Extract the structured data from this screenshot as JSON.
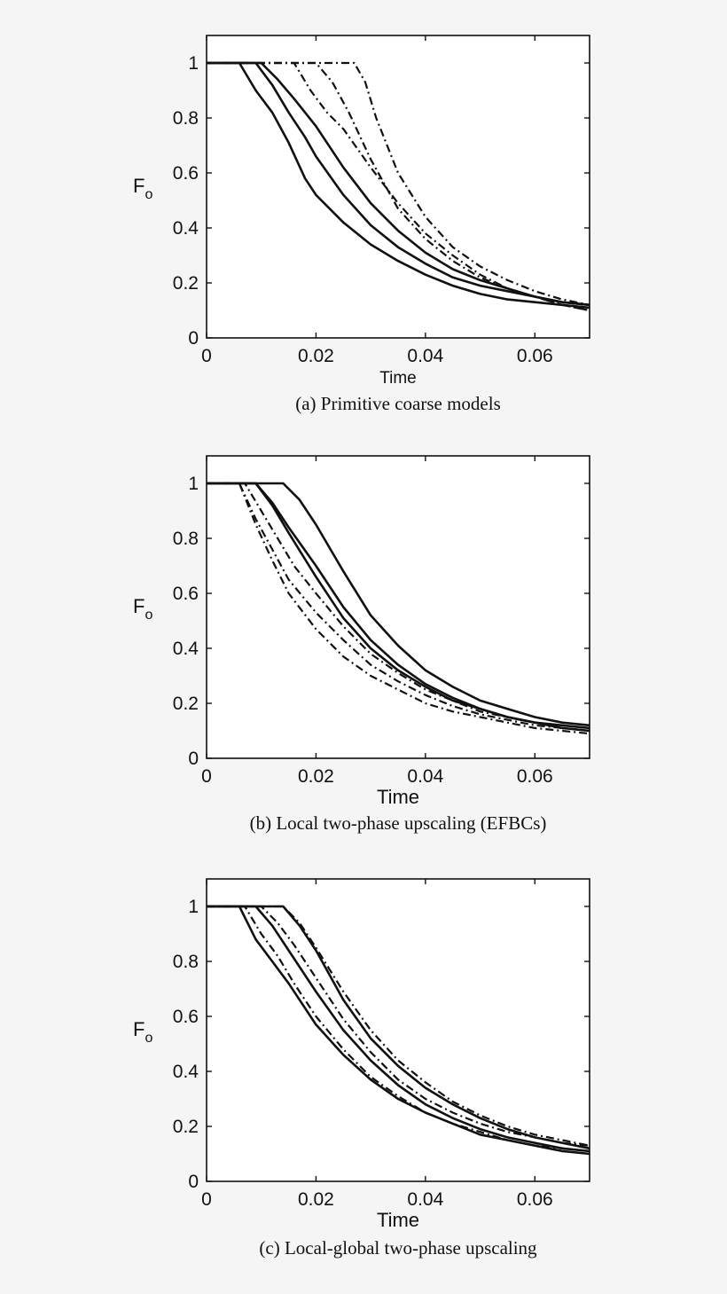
{
  "chart_data": [
    {
      "type": "line",
      "caption": "(a) Primitive coarse models",
      "xlabel": "Time",
      "ylabel": "F",
      "ylabel_sub": "o",
      "xlim": [
        0,
        0.07
      ],
      "ylim": [
        0,
        1.1
      ],
      "xticks": [
        "0",
        "0.02",
        "0.04",
        "0.06"
      ],
      "yticks": [
        "0",
        "0.2",
        "0.4",
        "0.6",
        "0.8",
        "1"
      ],
      "grid": false,
      "series": [
        {
          "style": "solid",
          "x": [
            0,
            0.006,
            0.009,
            0.012,
            0.015,
            0.018,
            0.02,
            0.025,
            0.03,
            0.035,
            0.04,
            0.045,
            0.05,
            0.055,
            0.06,
            0.065,
            0.07
          ],
          "y": [
            1,
            1,
            0.9,
            0.82,
            0.71,
            0.58,
            0.52,
            0.42,
            0.34,
            0.28,
            0.23,
            0.19,
            0.16,
            0.14,
            0.13,
            0.12,
            0.11
          ]
        },
        {
          "style": "solid",
          "x": [
            0,
            0.009,
            0.012,
            0.015,
            0.018,
            0.02,
            0.025,
            0.03,
            0.035,
            0.04,
            0.045,
            0.05,
            0.055,
            0.06,
            0.065,
            0.07
          ],
          "y": [
            1,
            1,
            0.92,
            0.82,
            0.73,
            0.66,
            0.52,
            0.41,
            0.33,
            0.27,
            0.22,
            0.19,
            0.17,
            0.15,
            0.13,
            0.12
          ]
        },
        {
          "style": "solid",
          "x": [
            0,
            0.01,
            0.013,
            0.016,
            0.02,
            0.025,
            0.03,
            0.035,
            0.04,
            0.045,
            0.05,
            0.055,
            0.06,
            0.065,
            0.07
          ],
          "y": [
            1,
            1,
            0.94,
            0.87,
            0.77,
            0.62,
            0.49,
            0.39,
            0.31,
            0.25,
            0.21,
            0.18,
            0.15,
            0.13,
            0.12
          ]
        },
        {
          "style": "dashdot",
          "x": [
            0,
            0.016,
            0.019,
            0.022,
            0.025,
            0.03,
            0.035,
            0.04,
            0.045,
            0.05,
            0.055,
            0.06,
            0.065,
            0.07
          ],
          "y": [
            1,
            1,
            0.9,
            0.82,
            0.76,
            0.62,
            0.49,
            0.38,
            0.3,
            0.23,
            0.18,
            0.15,
            0.12,
            0.1
          ]
        },
        {
          "style": "dashdot",
          "x": [
            0,
            0.02,
            0.023,
            0.026,
            0.03,
            0.035,
            0.04,
            0.045,
            0.05,
            0.055,
            0.06,
            0.065,
            0.07
          ],
          "y": [
            1,
            1,
            0.93,
            0.82,
            0.65,
            0.47,
            0.36,
            0.28,
            0.22,
            0.18,
            0.15,
            0.12,
            0.1
          ]
        },
        {
          "style": "dashdot",
          "x": [
            0,
            0.027,
            0.029,
            0.031,
            0.035,
            0.04,
            0.045,
            0.05,
            0.055,
            0.06,
            0.065,
            0.07
          ],
          "y": [
            1,
            1,
            0.93,
            0.8,
            0.6,
            0.44,
            0.33,
            0.26,
            0.21,
            0.17,
            0.14,
            0.12
          ]
        }
      ]
    },
    {
      "type": "line",
      "caption": "(b) Local two-phase upscaling (EFBCs)",
      "xlabel": "Time",
      "ylabel": "F",
      "ylabel_sub": "o",
      "xlim": [
        0,
        0.07
      ],
      "ylim": [
        0,
        1.1
      ],
      "xticks": [
        "0",
        "0.02",
        "0.04",
        "0.06"
      ],
      "yticks": [
        "0",
        "0.2",
        "0.4",
        "0.6",
        "0.8",
        "1"
      ],
      "grid": false,
      "series": [
        {
          "style": "solid",
          "x": [
            0,
            0.014,
            0.017,
            0.02,
            0.025,
            0.03,
            0.035,
            0.04,
            0.045,
            0.05,
            0.055,
            0.06,
            0.065,
            0.07
          ],
          "y": [
            1,
            1,
            0.94,
            0.85,
            0.68,
            0.52,
            0.41,
            0.32,
            0.26,
            0.21,
            0.18,
            0.15,
            0.13,
            0.12
          ]
        },
        {
          "style": "solid",
          "x": [
            0,
            0.009,
            0.012,
            0.015,
            0.02,
            0.025,
            0.03,
            0.035,
            0.04,
            0.045,
            0.05,
            0.055,
            0.06,
            0.065,
            0.07
          ],
          "y": [
            1,
            1,
            0.93,
            0.84,
            0.7,
            0.55,
            0.43,
            0.34,
            0.27,
            0.22,
            0.18,
            0.15,
            0.13,
            0.12,
            0.11
          ]
        },
        {
          "style": "solid",
          "x": [
            0,
            0.009,
            0.012,
            0.015,
            0.02,
            0.025,
            0.03,
            0.035,
            0.04,
            0.045,
            0.05,
            0.055,
            0.06,
            0.065,
            0.07
          ],
          "y": [
            1,
            1,
            0.92,
            0.82,
            0.66,
            0.51,
            0.4,
            0.32,
            0.26,
            0.21,
            0.18,
            0.15,
            0.13,
            0.11,
            0.1
          ]
        },
        {
          "style": "dashdot",
          "x": [
            0,
            0.007,
            0.01,
            0.013,
            0.016,
            0.02,
            0.025,
            0.03,
            0.035,
            0.04,
            0.045,
            0.05,
            0.055,
            0.06,
            0.065,
            0.07
          ],
          "y": [
            1,
            1,
            0.9,
            0.8,
            0.7,
            0.6,
            0.48,
            0.38,
            0.31,
            0.25,
            0.21,
            0.17,
            0.15,
            0.13,
            0.11,
            0.1
          ]
        },
        {
          "style": "dashdot",
          "x": [
            0,
            0.006,
            0.009,
            0.012,
            0.015,
            0.02,
            0.025,
            0.03,
            0.035,
            0.04,
            0.045,
            0.05,
            0.055,
            0.06,
            0.065,
            0.07
          ],
          "y": [
            1,
            1,
            0.87,
            0.76,
            0.65,
            0.53,
            0.43,
            0.34,
            0.28,
            0.23,
            0.19,
            0.16,
            0.14,
            0.12,
            0.11,
            0.1
          ]
        },
        {
          "style": "dashdot",
          "x": [
            0,
            0.006,
            0.009,
            0.012,
            0.015,
            0.02,
            0.025,
            0.03,
            0.035,
            0.04,
            0.045,
            0.05,
            0.055,
            0.06,
            0.065,
            0.07
          ],
          "y": [
            1,
            1,
            0.85,
            0.72,
            0.6,
            0.47,
            0.37,
            0.3,
            0.25,
            0.2,
            0.17,
            0.15,
            0.13,
            0.11,
            0.1,
            0.09
          ]
        }
      ]
    },
    {
      "type": "line",
      "caption": "(c) Local-global two-phase upscaling",
      "xlabel": "Time",
      "ylabel": "F",
      "ylabel_sub": "o",
      "xlim": [
        0,
        0.07
      ],
      "ylim": [
        0,
        1.1
      ],
      "xticks": [
        "0",
        "0.02",
        "0.04",
        "0.06"
      ],
      "yticks": [
        "0",
        "0.2",
        "0.4",
        "0.6",
        "0.8",
        "1"
      ],
      "grid": false,
      "series": [
        {
          "style": "solid",
          "x": [
            0,
            0.006,
            0.009,
            0.012,
            0.015,
            0.02,
            0.025,
            0.03,
            0.035,
            0.04,
            0.045,
            0.05,
            0.055,
            0.06,
            0.065,
            0.07
          ],
          "y": [
            1,
            1,
            0.88,
            0.8,
            0.72,
            0.57,
            0.46,
            0.37,
            0.3,
            0.25,
            0.21,
            0.17,
            0.15,
            0.13,
            0.11,
            0.1
          ]
        },
        {
          "style": "solid",
          "x": [
            0,
            0.009,
            0.012,
            0.015,
            0.02,
            0.025,
            0.03,
            0.035,
            0.04,
            0.045,
            0.05,
            0.055,
            0.06,
            0.065,
            0.07
          ],
          "y": [
            1,
            1,
            0.93,
            0.84,
            0.69,
            0.55,
            0.44,
            0.35,
            0.28,
            0.23,
            0.19,
            0.16,
            0.14,
            0.12,
            0.11
          ]
        },
        {
          "style": "solid",
          "x": [
            0,
            0.014,
            0.017,
            0.02,
            0.025,
            0.03,
            0.035,
            0.04,
            0.045,
            0.05,
            0.055,
            0.06,
            0.065,
            0.07
          ],
          "y": [
            1,
            1,
            0.93,
            0.84,
            0.66,
            0.52,
            0.42,
            0.34,
            0.28,
            0.23,
            0.19,
            0.16,
            0.14,
            0.12
          ]
        },
        {
          "style": "dashdot",
          "x": [
            0,
            0.007,
            0.01,
            0.013,
            0.016,
            0.02,
            0.025,
            0.03,
            0.035,
            0.04,
            0.045,
            0.05,
            0.055,
            0.06,
            0.065,
            0.07
          ],
          "y": [
            1,
            1,
            0.9,
            0.82,
            0.72,
            0.6,
            0.48,
            0.38,
            0.31,
            0.25,
            0.21,
            0.18,
            0.15,
            0.13,
            0.12,
            0.11
          ]
        },
        {
          "style": "dashdot",
          "x": [
            0,
            0.01,
            0.013,
            0.016,
            0.02,
            0.025,
            0.03,
            0.035,
            0.04,
            0.045,
            0.05,
            0.055,
            0.06,
            0.065,
            0.07
          ],
          "y": [
            1,
            1,
            0.94,
            0.86,
            0.74,
            0.59,
            0.47,
            0.37,
            0.3,
            0.25,
            0.21,
            0.18,
            0.16,
            0.14,
            0.13
          ]
        },
        {
          "style": "dashdot",
          "x": [
            0,
            0.014,
            0.017,
            0.02,
            0.025,
            0.03,
            0.035,
            0.04,
            0.045,
            0.05,
            0.055,
            0.06,
            0.065,
            0.07
          ],
          "y": [
            1,
            1,
            0.94,
            0.85,
            0.69,
            0.55,
            0.44,
            0.36,
            0.29,
            0.24,
            0.2,
            0.17,
            0.15,
            0.13
          ]
        }
      ]
    }
  ]
}
